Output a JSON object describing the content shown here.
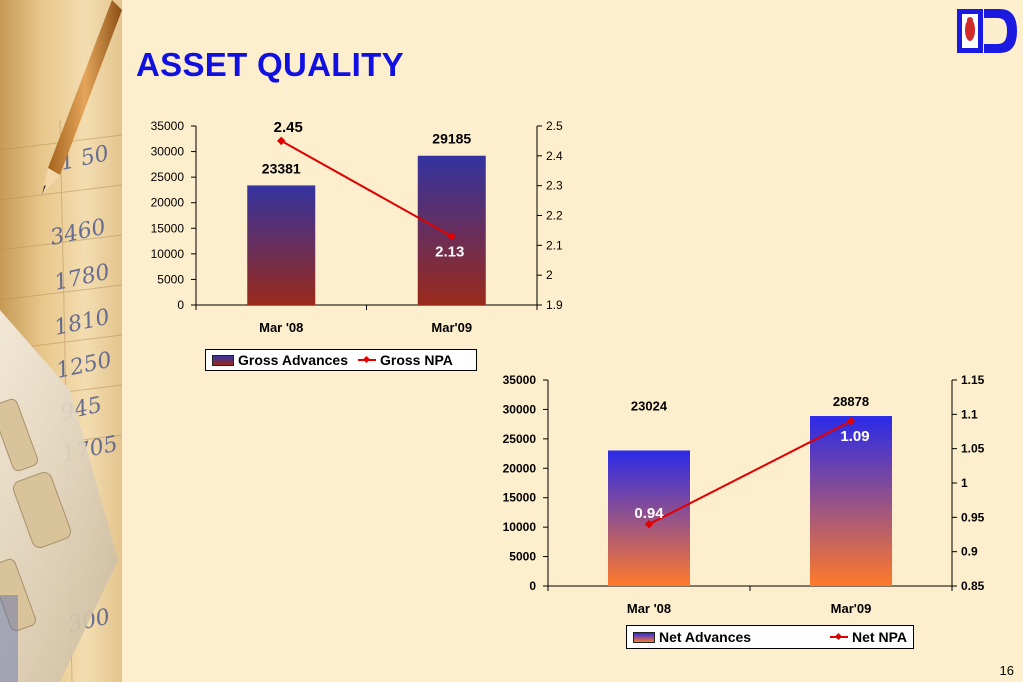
{
  "slide": {
    "title": "ASSET QUALITY",
    "page_number": "16"
  },
  "chart_data": [
    {
      "type": "bar",
      "categories": [
        "Mar '08",
        "Mar'09"
      ],
      "series": [
        {
          "name": "Gross Advances",
          "kind": "bar",
          "axis": "left",
          "values": [
            23381,
            29185
          ],
          "labels": [
            "23381",
            "29185"
          ],
          "color_top": "#3333a0",
          "color_bottom": "#9a2a1a"
        },
        {
          "name": "Gross NPA",
          "kind": "line",
          "axis": "right",
          "values": [
            2.45,
            2.13
          ],
          "labels": [
            "2.45",
            "2.13"
          ],
          "color": "#e00000"
        }
      ],
      "left_axis": {
        "min": 0,
        "max": 35000,
        "step": 5000,
        "ticks": [
          "0",
          "5000",
          "10000",
          "15000",
          "20000",
          "25000",
          "30000",
          "35000"
        ]
      },
      "right_axis": {
        "min": 1.9,
        "max": 2.5,
        "step": 0.1,
        "ticks": [
          "1.9",
          "2",
          "2.1",
          "2.2",
          "2.3",
          "2.4",
          "2.5"
        ]
      },
      "legend_position": "bottom"
    },
    {
      "type": "bar",
      "categories": [
        "Mar '08",
        "Mar'09"
      ],
      "series": [
        {
          "name": "Net Advances",
          "kind": "bar",
          "axis": "left",
          "values": [
            23024,
            28878
          ],
          "labels": [
            "23024",
            "28878"
          ],
          "color_top": "#2a2ae8",
          "color_bottom": "#ff7a2a"
        },
        {
          "name": "Net NPA",
          "kind": "line",
          "axis": "right",
          "values": [
            0.94,
            1.09
          ],
          "labels": [
            "0.94",
            "1.09"
          ],
          "color": "#e00000"
        }
      ],
      "left_axis": {
        "min": 0,
        "max": 35000,
        "step": 5000,
        "ticks": [
          "0",
          "5000",
          "10000",
          "15000",
          "20000",
          "25000",
          "30000",
          "35000"
        ]
      },
      "right_axis": {
        "min": 0.85,
        "max": 1.15,
        "step": 0.05,
        "ticks": [
          "0.85",
          "0.9",
          "0.95",
          "1",
          "1.05",
          "1.1",
          "1.15"
        ]
      },
      "legend_position": "bottom"
    }
  ]
}
